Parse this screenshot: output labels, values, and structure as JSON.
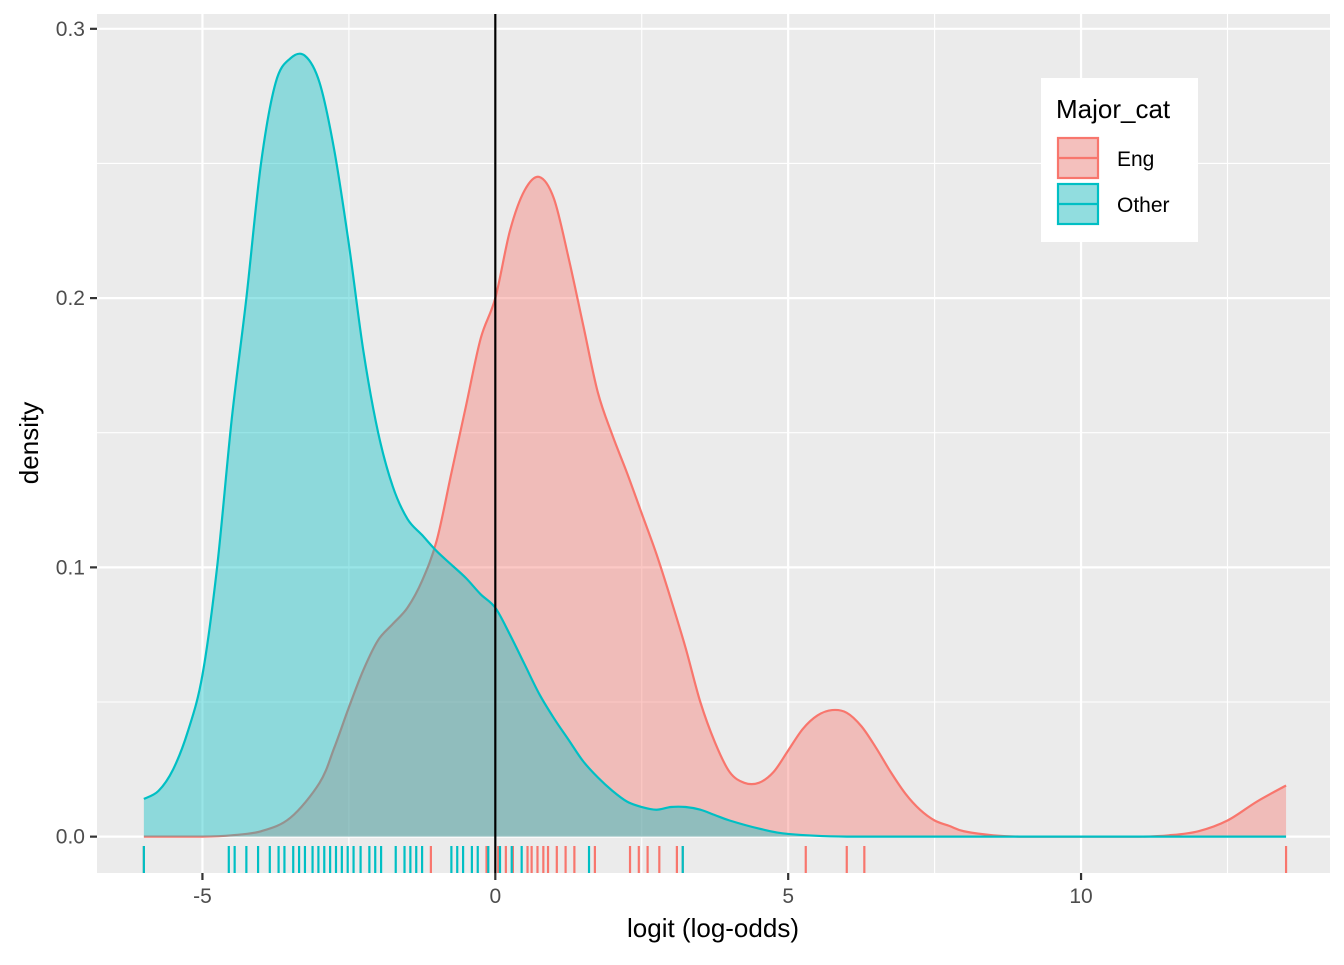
{
  "chart_data": {
    "type": "area",
    "title": "",
    "xlabel": "logit (log-odds)",
    "ylabel": "density",
    "xlim": [
      -6.8,
      14.25
    ],
    "ylim": [
      -0.0135,
      0.3055
    ],
    "x_ticks": [
      -5,
      0,
      5,
      10
    ],
    "x_tick_labels": [
      "-5",
      "0",
      "5",
      "10"
    ],
    "y_ticks": [
      0.0,
      0.1,
      0.2,
      0.3
    ],
    "y_tick_labels": [
      "0.0",
      "0.1",
      "0.2",
      "0.3"
    ],
    "vline_x": 0,
    "legend": {
      "title": "Major_cat",
      "position": "top-right"
    },
    "series": [
      {
        "name": "Eng",
        "color": "#F8766D",
        "fill": "#F8766D",
        "x": [
          -6,
          -5,
          -4.5,
          -4,
          -3.5,
          -3,
          -2.75,
          -2.5,
          -2.25,
          -2,
          -1.75,
          -1.5,
          -1.25,
          -1,
          -0.75,
          -0.5,
          -0.25,
          0,
          0.25,
          0.5,
          0.75,
          1,
          1.25,
          1.5,
          1.75,
          2,
          2.25,
          2.5,
          2.75,
          3,
          3.25,
          3.5,
          3.75,
          4,
          4.25,
          4.5,
          4.75,
          5,
          5.25,
          5.5,
          5.75,
          6,
          6.25,
          6.5,
          6.75,
          7,
          7.25,
          7.5,
          7.75,
          8,
          8.5,
          9,
          10,
          11,
          11.5,
          12,
          12.5,
          13,
          13.5
        ],
        "y": [
          0.0,
          0.0,
          0.0005,
          0.002,
          0.007,
          0.02,
          0.033,
          0.048,
          0.062,
          0.073,
          0.079,
          0.085,
          0.095,
          0.11,
          0.135,
          0.16,
          0.185,
          0.2,
          0.225,
          0.24,
          0.245,
          0.237,
          0.215,
          0.19,
          0.165,
          0.149,
          0.135,
          0.12,
          0.105,
          0.088,
          0.07,
          0.05,
          0.035,
          0.024,
          0.02,
          0.02,
          0.024,
          0.032,
          0.04,
          0.045,
          0.047,
          0.046,
          0.041,
          0.033,
          0.024,
          0.016,
          0.01,
          0.006,
          0.004,
          0.002,
          0.0005,
          0.0,
          0.0,
          0.0,
          0.0005,
          0.002,
          0.006,
          0.013,
          0.019
        ]
      },
      {
        "name": "Other",
        "color": "#00BFC4",
        "fill": "#00BFC4",
        "x": [
          -6,
          -5.75,
          -5.5,
          -5.25,
          -5,
          -4.75,
          -4.5,
          -4.25,
          -4,
          -3.75,
          -3.5,
          -3.25,
          -3,
          -2.75,
          -2.5,
          -2.25,
          -2,
          -1.75,
          -1.5,
          -1.25,
          -1,
          -0.75,
          -0.5,
          -0.25,
          0,
          0.25,
          0.5,
          0.75,
          1,
          1.25,
          1.5,
          1.75,
          2,
          2.25,
          2.5,
          2.75,
          3,
          3.25,
          3.5,
          3.75,
          4,
          4.5,
          5,
          6,
          8,
          10,
          13.5
        ],
        "y": [
          0.014,
          0.017,
          0.025,
          0.039,
          0.06,
          0.1,
          0.155,
          0.2,
          0.25,
          0.28,
          0.289,
          0.29,
          0.28,
          0.255,
          0.22,
          0.18,
          0.15,
          0.13,
          0.118,
          0.112,
          0.106,
          0.101,
          0.096,
          0.09,
          0.085,
          0.075,
          0.064,
          0.053,
          0.044,
          0.036,
          0.028,
          0.022,
          0.017,
          0.013,
          0.011,
          0.01,
          0.011,
          0.011,
          0.01,
          0.008,
          0.006,
          0.003,
          0.001,
          0.0,
          0.0,
          0.0,
          0.0
        ]
      }
    ],
    "rug": {
      "Eng": [
        -6,
        -1.1,
        -0.15,
        0.05,
        0.18,
        0.3,
        0.55,
        0.62,
        0.72,
        0.82,
        0.9,
        1.05,
        1.2,
        1.35,
        1.7,
        2.3,
        2.45,
        2.6,
        2.8,
        3.1,
        3.2,
        5.3,
        6.0,
        6.3,
        13.5
      ],
      "Other": [
        -6,
        -4.55,
        -4.45,
        -4.25,
        -4.05,
        -3.85,
        -3.7,
        -3.6,
        -3.45,
        -3.35,
        -3.25,
        -3.12,
        -3.02,
        -2.92,
        -2.82,
        -2.72,
        -2.62,
        -2.52,
        -2.42,
        -2.3,
        -2.15,
        -2.05,
        -1.95,
        -1.7,
        -1.55,
        -1.45,
        -1.35,
        -1.25,
        -0.75,
        -0.65,
        -0.55,
        -0.4,
        -0.3,
        -0.12,
        0.08,
        0.28,
        0.45,
        1.6,
        3.2
      ]
    }
  }
}
